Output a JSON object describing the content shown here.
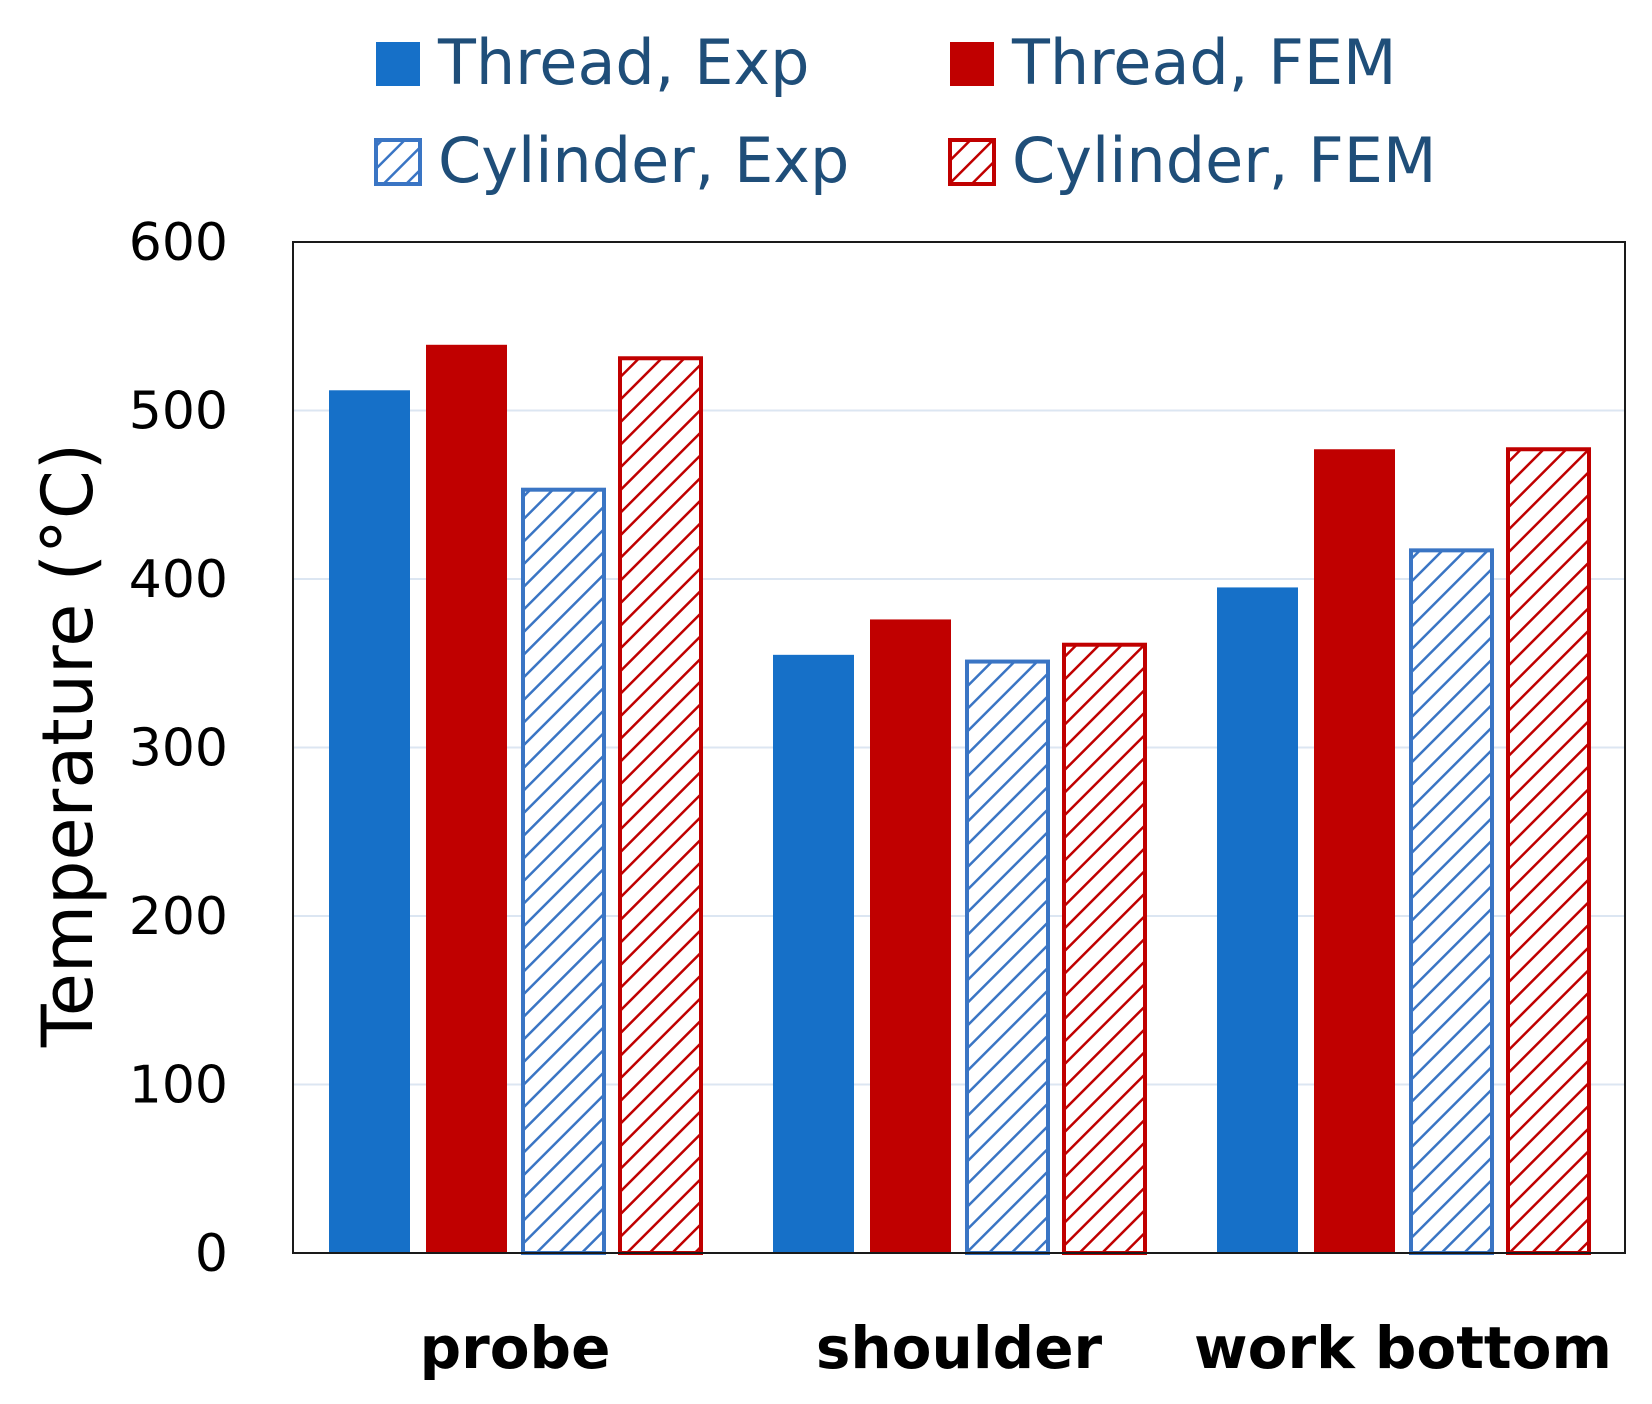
{
  "chart_data": {
    "type": "bar",
    "categories": [
      "probe",
      "shoulder",
      "work bottom"
    ],
    "series": [
      {
        "name": "Thread, Exp",
        "values": [
          512,
          355,
          395
        ],
        "color": "#1670c8",
        "pattern": "solid"
      },
      {
        "name": "Thread, FEM",
        "values": [
          539,
          376,
          477
        ],
        "color": "#c00000",
        "pattern": "solid"
      },
      {
        "name": "Cylinder, Exp",
        "values": [
          453,
          351,
          417
        ],
        "color": "#3a75c4",
        "pattern": "hatch"
      },
      {
        "name": "Cylinder, FEM",
        "values": [
          531,
          361,
          477
        ],
        "color": "#c00000",
        "pattern": "hatch"
      }
    ],
    "title": "",
    "xlabel": "",
    "ylabel": "Temperature (°C)",
    "ylim": [
      0,
      600
    ],
    "yticks": [
      "0",
      "100",
      "200",
      "300",
      "400",
      "500",
      "600"
    ],
    "grid": true,
    "legend_position": "top"
  }
}
